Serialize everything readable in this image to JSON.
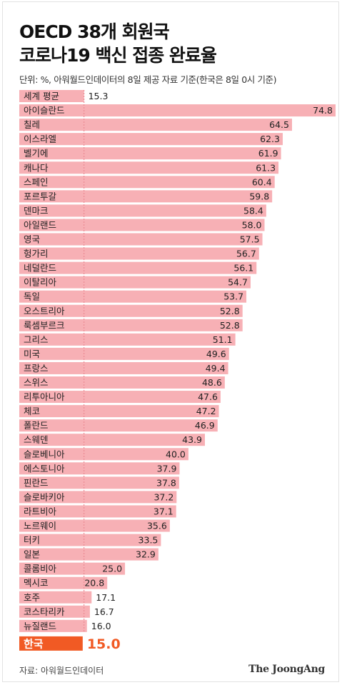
{
  "header": {
    "title_line1": "OECD 38개 회원국",
    "title_line2": "코로나19 백신 접종 완료율",
    "subtitle": "단위: %, 아워월드인데이터의 8일 제공 자료 기준(한국은 8일 0시 기준)"
  },
  "footer": {
    "source": "자료: 아워월드인데이터",
    "brand": "The JoongAng"
  },
  "colors": {
    "bar": "#f7b0b5",
    "highlight_bar": "#f15a24",
    "highlight_value": "#f15a24",
    "average_line": "#ec8b93",
    "label_text": "#222222"
  },
  "chart_data": {
    "type": "bar",
    "orientation": "horizontal",
    "title": "OECD 38개 회원국 코로나19 백신 접종 완료율",
    "unit": "%",
    "xlim": [
      0,
      75
    ],
    "grid": false,
    "reference_line": {
      "label": "세계 평균",
      "value": 15.3
    },
    "highlight": {
      "category": "한국",
      "value": 15.0
    },
    "categories": [
      "세계 평균",
      "아이슬란드",
      "칠레",
      "이스라엘",
      "벨기에",
      "캐나다",
      "스페인",
      "포르투갈",
      "덴마크",
      "아일랜드",
      "영국",
      "헝가리",
      "네덜란드",
      "이탈리아",
      "독일",
      "오스트리아",
      "룩셈부르크",
      "그리스",
      "미국",
      "프랑스",
      "스위스",
      "리투아니아",
      "체코",
      "폴란드",
      "스웨덴",
      "슬로베니아",
      "에스토니아",
      "핀란드",
      "슬로바키아",
      "라트비아",
      "노르웨이",
      "터키",
      "일본",
      "콜롬비아",
      "멕시코",
      "호주",
      "코스타리카",
      "뉴질랜드",
      "한국"
    ],
    "values": [
      15.3,
      74.8,
      64.5,
      62.3,
      61.9,
      61.3,
      60.4,
      59.8,
      58.4,
      58.0,
      57.5,
      56.7,
      56.1,
      54.7,
      53.7,
      52.8,
      52.8,
      51.1,
      49.6,
      49.4,
      48.6,
      47.6,
      47.2,
      46.9,
      43.9,
      40.0,
      37.9,
      37.8,
      37.2,
      37.1,
      35.6,
      33.5,
      32.9,
      25.0,
      20.8,
      17.1,
      16.7,
      16.0,
      15.0
    ],
    "value_labels": [
      "15.3",
      "74.8",
      "64.5",
      "62.3",
      "61.9",
      "61.3",
      "60.4",
      "59.8",
      "58.4",
      "58.0",
      "57.5",
      "56.7",
      "56.1",
      "54.7",
      "53.7",
      "52.8",
      "52.8",
      "51.1",
      "49.6",
      "49.4",
      "48.6",
      "47.6",
      "47.2",
      "46.9",
      "43.9",
      "40.0",
      "37.9",
      "37.8",
      "37.2",
      "37.1",
      "35.6",
      "33.5",
      "32.9",
      "25.0",
      "20.8",
      "17.1",
      "16.7",
      "16.0",
      "15.0"
    ]
  }
}
